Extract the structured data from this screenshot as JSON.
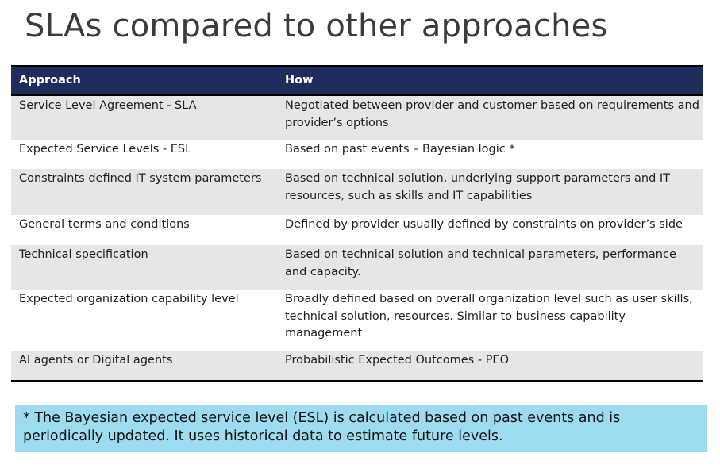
{
  "title": "SLAs compared to other approaches",
  "table": {
    "headers": {
      "approach": "Approach",
      "how": "How"
    },
    "rows": [
      {
        "approach": "Service Level Agreement - SLA",
        "how": "Negotiated between provider and customer based on requirements and provider’s options"
      },
      {
        "approach": "Expected Service Levels - ESL",
        "how": "Based on past events – Bayesian logic *"
      },
      {
        "approach": "Constraints defined IT system parameters",
        "how": "Based on technical solution, underlying support parameters and IT resources, such as skills and IT capabilities"
      },
      {
        "approach": "General terms and conditions",
        "how": "Defined by provider usually defined by constraints on provider’s side"
      },
      {
        "approach": "Technical specification",
        "how": "Based on technical solution and technical parameters, performance and capacity."
      },
      {
        "approach": "Expected organization capability level",
        "how": "Broadly defined based on overall organization level such as user skills, technical solution, resources. Similar to business capability management"
      },
      {
        "approach": "AI agents or Digital agents",
        "how": "Probabilistic Expected Outcomes - PEO"
      }
    ]
  },
  "note": "* The Bayesian expected service level (ESL) is calculated based on past events and is periodically updated. It uses historical data to estimate future levels.",
  "colors": {
    "header_bg": "#1f2d5c",
    "row_shade": "#e6e6e6",
    "note_bg": "#9ddcf0"
  }
}
